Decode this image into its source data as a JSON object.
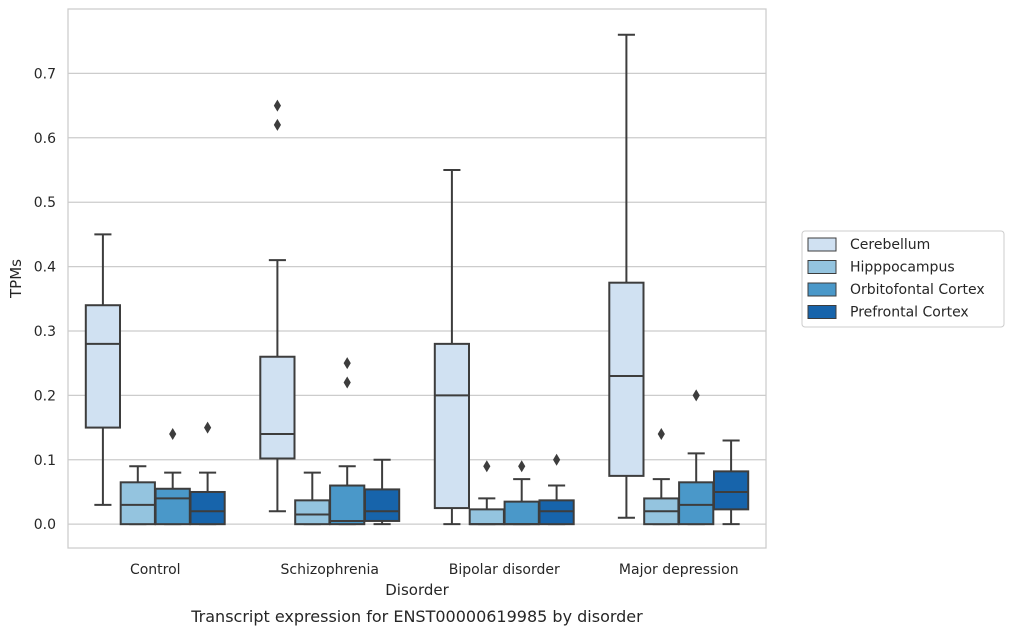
{
  "chart_data": {
    "type": "box",
    "caption": "Transcript expression for ENST00000619985 by disorder",
    "xlabel": "Disorder",
    "ylabel": "TPMs",
    "ylim": [
      -0.037,
      0.8
    ],
    "yticks": [
      0.0,
      0.1,
      0.2,
      0.3,
      0.4,
      0.5,
      0.6,
      0.7
    ],
    "ytick_labels": [
      "0.0",
      "0.1",
      "0.2",
      "0.3",
      "0.4",
      "0.5",
      "0.6",
      "0.7"
    ],
    "grid": true,
    "legend_position": "right",
    "categories": [
      "Control",
      "Schizophrenia",
      "Bipolar disorder",
      "Major depression"
    ],
    "series": [
      {
        "name": "Cerebellum",
        "color": "#d0e1f2",
        "boxes": [
          {
            "whislo": 0.03,
            "q1": 0.15,
            "med": 0.28,
            "q3": 0.34,
            "whishi": 0.45,
            "fliers": []
          },
          {
            "whislo": 0.02,
            "q1": 0.102,
            "med": 0.14,
            "q3": 0.26,
            "whishi": 0.41,
            "fliers": [
              0.62,
              0.65
            ]
          },
          {
            "whislo": 0.0,
            "q1": 0.025,
            "med": 0.2,
            "q3": 0.28,
            "whishi": 0.55,
            "fliers": []
          },
          {
            "whislo": 0.01,
            "q1": 0.075,
            "med": 0.23,
            "q3": 0.375,
            "whishi": 0.76,
            "fliers": []
          }
        ]
      },
      {
        "name": "Hipppocampus",
        "color": "#94c4df",
        "boxes": [
          {
            "whislo": 0.0,
            "q1": 0.0,
            "med": 0.03,
            "q3": 0.065,
            "whishi": 0.09,
            "fliers": []
          },
          {
            "whislo": 0.0,
            "q1": 0.0,
            "med": 0.015,
            "q3": 0.037,
            "whishi": 0.08,
            "fliers": []
          },
          {
            "whislo": 0.0,
            "q1": 0.0,
            "med": 0.0,
            "q3": 0.023,
            "whishi": 0.04,
            "fliers": [
              0.09
            ]
          },
          {
            "whislo": 0.0,
            "q1": 0.0,
            "med": 0.02,
            "q3": 0.04,
            "whishi": 0.07,
            "fliers": [
              0.14
            ]
          }
        ]
      },
      {
        "name": "Orbitofontal Cortex",
        "color": "#4a98c9",
        "boxes": [
          {
            "whislo": 0.0,
            "q1": 0.0,
            "med": 0.04,
            "q3": 0.055,
            "whishi": 0.08,
            "fliers": [
              0.14
            ]
          },
          {
            "whislo": 0.0,
            "q1": 0.0,
            "med": 0.005,
            "q3": 0.06,
            "whishi": 0.09,
            "fliers": [
              0.22,
              0.25
            ]
          },
          {
            "whislo": 0.0,
            "q1": 0.0,
            "med": 0.0,
            "q3": 0.035,
            "whishi": 0.07,
            "fliers": [
              0.09
            ]
          },
          {
            "whislo": 0.0,
            "q1": 0.0,
            "med": 0.03,
            "q3": 0.065,
            "whishi": 0.11,
            "fliers": [
              0.2
            ]
          }
        ]
      },
      {
        "name": "Prefrontal Cortex",
        "color": "#1764ab",
        "boxes": [
          {
            "whislo": 0.0,
            "q1": 0.0,
            "med": 0.02,
            "q3": 0.05,
            "whishi": 0.08,
            "fliers": [
              0.15
            ]
          },
          {
            "whislo": 0.0,
            "q1": 0.005,
            "med": 0.02,
            "q3": 0.054,
            "whishi": 0.1,
            "fliers": []
          },
          {
            "whislo": 0.0,
            "q1": 0.0,
            "med": 0.02,
            "q3": 0.037,
            "whishi": 0.06,
            "fliers": [
              0.1
            ]
          },
          {
            "whislo": 0.0,
            "q1": 0.023,
            "med": 0.05,
            "q3": 0.082,
            "whishi": 0.13,
            "fliers": []
          }
        ]
      }
    ]
  }
}
